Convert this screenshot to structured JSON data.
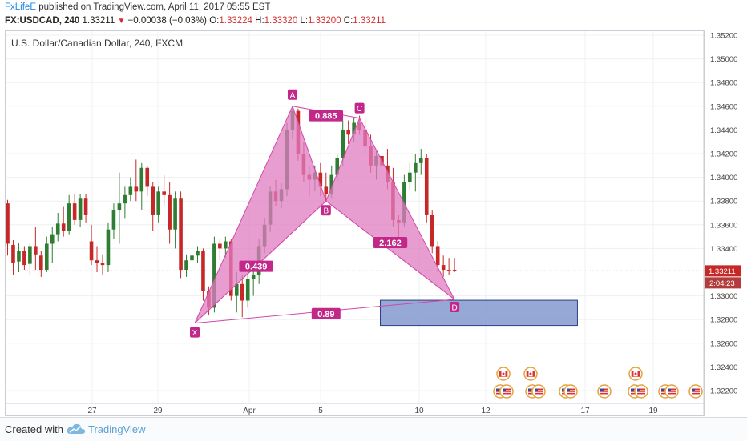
{
  "header": {
    "publisher": "FxLifeE",
    "published_text": "published on TradingView.com, April 11, 2017 05:55 EST"
  },
  "quote": {
    "symbol": "FX:USDCAD, 240",
    "last": "1.33211",
    "change": "−0.00038 (−0.03%)",
    "o_label": "O:",
    "o": "1.33224",
    "h_label": "H:",
    "h": "1.33320",
    "l_label": "L:",
    "l": "1.33200",
    "c_label": "C:",
    "c": "1.33211"
  },
  "chart_title": "U.S. Dollar/Canadian Dollar, 240, FXCM",
  "footer": {
    "created_with": "Created with",
    "brand": "TradingView"
  },
  "colors": {
    "up": "#2e7d32",
    "down": "#c62828",
    "pattern_fill": "#e07cc2",
    "pattern_line": "#d148a8",
    "label_bg": "#c2278a",
    "zone_fill": "#8299cf",
    "zone_stroke": "#2b3f8a",
    "price_line": "#e0483e"
  },
  "chart_data": {
    "type": "candlestick",
    "title": "U.S. Dollar/Canadian Dollar, 240, FXCM",
    "y_ticks": [
      "1.35200",
      "1.35000",
      "1.34800",
      "1.34600",
      "1.34400",
      "1.34200",
      "1.34000",
      "1.33800",
      "1.33600",
      "1.33400",
      "1.33000",
      "1.32800",
      "1.32600",
      "1.32400",
      "1.32200"
    ],
    "x_ticks": [
      "27",
      "29",
      "Apr",
      "5",
      "10",
      "12",
      "17",
      "19"
    ],
    "ylim": [
      1.3212,
      1.3526
    ],
    "last_price": "1.33211",
    "countdown": "2:04:23",
    "pattern": {
      "points": [
        {
          "label": "X",
          "t": 33.5,
          "price": 1.3277
        },
        {
          "label": "A",
          "t": 51.0,
          "price": 1.346
        },
        {
          "label": "B",
          "t": 57.0,
          "price": 1.338
        },
        {
          "label": "C",
          "t": 63.0,
          "price": 1.345
        },
        {
          "label": "D",
          "t": 80.0,
          "price": 1.3297
        }
      ],
      "ratios": [
        {
          "text": "0.885",
          "t": 57.0,
          "price": 1.3452
        },
        {
          "text": "0.439",
          "t": 44.5,
          "price": 1.3325
        },
        {
          "text": "2.162",
          "t": 68.5,
          "price": 1.3345
        },
        {
          "text": "0.89",
          "t": 57.0,
          "price": 1.3285
        }
      ]
    },
    "zone": {
      "t_start": 66.0,
      "t_end": 102.0,
      "price_top": 1.32963,
      "price_bottom": 1.3275
    },
    "candles": [
      {
        "t": 0,
        "o": 1.3378,
        "h": 1.3381,
        "l": 1.3334,
        "c": 1.3344
      },
      {
        "t": 1,
        "o": 1.3343,
        "h": 1.3347,
        "l": 1.3318,
        "c": 1.3328
      },
      {
        "t": 2,
        "o": 1.3329,
        "h": 1.3345,
        "l": 1.332,
        "c": 1.3338
      },
      {
        "t": 3,
        "o": 1.3338,
        "h": 1.3342,
        "l": 1.3322,
        "c": 1.3326
      },
      {
        "t": 4,
        "o": 1.3327,
        "h": 1.3345,
        "l": 1.3318,
        "c": 1.3342
      },
      {
        "t": 5,
        "o": 1.3342,
        "h": 1.3358,
        "l": 1.3322,
        "c": 1.3335
      },
      {
        "t": 6,
        "o": 1.3334,
        "h": 1.3338,
        "l": 1.3316,
        "c": 1.3322
      },
      {
        "t": 7,
        "o": 1.3322,
        "h": 1.335,
        "l": 1.332,
        "c": 1.3344
      },
      {
        "t": 8,
        "o": 1.3344,
        "h": 1.3358,
        "l": 1.3328,
        "c": 1.3352
      },
      {
        "t": 9,
        "o": 1.3352,
        "h": 1.337,
        "l": 1.3346,
        "c": 1.3361
      },
      {
        "t": 10,
        "o": 1.3361,
        "h": 1.3375,
        "l": 1.335,
        "c": 1.3355
      },
      {
        "t": 11,
        "o": 1.3355,
        "h": 1.3385,
        "l": 1.3352,
        "c": 1.3378
      },
      {
        "t": 12,
        "o": 1.3378,
        "h": 1.3386,
        "l": 1.336,
        "c": 1.3364
      },
      {
        "t": 13,
        "o": 1.3364,
        "h": 1.3386,
        "l": 1.3358,
        "c": 1.3382
      },
      {
        "t": 14,
        "o": 1.3382,
        "h": 1.3386,
        "l": 1.3362,
        "c": 1.3368
      },
      {
        "t": 15,
        "o": 1.3346,
        "h": 1.336,
        "l": 1.3326,
        "c": 1.333
      },
      {
        "t": 16,
        "o": 1.333,
        "h": 1.3342,
        "l": 1.332,
        "c": 1.3328
      },
      {
        "t": 17,
        "o": 1.3328,
        "h": 1.3335,
        "l": 1.3318,
        "c": 1.3326
      },
      {
        "t": 18,
        "o": 1.3326,
        "h": 1.3362,
        "l": 1.332,
        "c": 1.3356
      },
      {
        "t": 19,
        "o": 1.3356,
        "h": 1.3378,
        "l": 1.3348,
        "c": 1.3372
      },
      {
        "t": 20,
        "o": 1.3372,
        "h": 1.3404,
        "l": 1.3344,
        "c": 1.3378
      },
      {
        "t": 21,
        "o": 1.3378,
        "h": 1.3392,
        "l": 1.3365,
        "c": 1.3385
      },
      {
        "t": 22,
        "o": 1.3385,
        "h": 1.34,
        "l": 1.338,
        "c": 1.3392
      },
      {
        "t": 23,
        "o": 1.3392,
        "h": 1.3415,
        "l": 1.338,
        "c": 1.3388
      },
      {
        "t": 24,
        "o": 1.3388,
        "h": 1.3412,
        "l": 1.3372,
        "c": 1.3408
      },
      {
        "t": 25,
        "o": 1.3408,
        "h": 1.341,
        "l": 1.3384,
        "c": 1.3392
      },
      {
        "t": 26,
        "o": 1.3392,
        "h": 1.3396,
        "l": 1.3355,
        "c": 1.3368
      },
      {
        "t": 27,
        "o": 1.3368,
        "h": 1.3392,
        "l": 1.3362,
        "c": 1.3388
      },
      {
        "t": 28,
        "o": 1.3388,
        "h": 1.3402,
        "l": 1.3376,
        "c": 1.3385
      },
      {
        "t": 29,
        "o": 1.3385,
        "h": 1.3396,
        "l": 1.3344,
        "c": 1.3356
      },
      {
        "t": 30,
        "o": 1.3356,
        "h": 1.3388,
        "l": 1.334,
        "c": 1.3382
      },
      {
        "t": 31,
        "o": 1.3382,
        "h": 1.3388,
        "l": 1.3315,
        "c": 1.3322
      },
      {
        "t": 32,
        "o": 1.3322,
        "h": 1.3335,
        "l": 1.3316,
        "c": 1.333
      },
      {
        "t": 33,
        "o": 1.333,
        "h": 1.3352,
        "l": 1.3322,
        "c": 1.3334
      },
      {
        "t": 34,
        "o": 1.3334,
        "h": 1.3342,
        "l": 1.3328,
        "c": 1.3338
      },
      {
        "t": 35,
        "o": 1.3338,
        "h": 1.334,
        "l": 1.3296,
        "c": 1.3304
      },
      {
        "t": 36,
        "o": 1.3304,
        "h": 1.3308,
        "l": 1.3284,
        "c": 1.329
      },
      {
        "t": 37,
        "o": 1.329,
        "h": 1.335,
        "l": 1.3286,
        "c": 1.3344
      },
      {
        "t": 38,
        "o": 1.3344,
        "h": 1.3348,
        "l": 1.333,
        "c": 1.334
      },
      {
        "t": 39,
        "o": 1.334,
        "h": 1.335,
        "l": 1.3332,
        "c": 1.3346
      },
      {
        "t": 40,
        "o": 1.3346,
        "h": 1.3348,
        "l": 1.3296,
        "c": 1.33
      },
      {
        "t": 41,
        "o": 1.33,
        "h": 1.332,
        "l": 1.3286,
        "c": 1.331
      },
      {
        "t": 42,
        "o": 1.331,
        "h": 1.3318,
        "l": 1.3282,
        "c": 1.3296
      },
      {
        "t": 43,
        "o": 1.3296,
        "h": 1.3318,
        "l": 1.329,
        "c": 1.3314
      },
      {
        "t": 44,
        "o": 1.3314,
        "h": 1.3326,
        "l": 1.33,
        "c": 1.3318
      },
      {
        "t": 45,
        "o": 1.3318,
        "h": 1.3348,
        "l": 1.331,
        "c": 1.3342
      },
      {
        "t": 46,
        "o": 1.3342,
        "h": 1.3366,
        "l": 1.3336,
        "c": 1.336
      },
      {
        "t": 47,
        "o": 1.336,
        "h": 1.3392,
        "l": 1.3354,
        "c": 1.3388
      },
      {
        "t": 48,
        "o": 1.3388,
        "h": 1.3398,
        "l": 1.3376,
        "c": 1.338
      },
      {
        "t": 49,
        "o": 1.338,
        "h": 1.3395,
        "l": 1.3374,
        "c": 1.339
      },
      {
        "t": 50,
        "o": 1.339,
        "h": 1.3446,
        "l": 1.3384,
        "c": 1.344
      },
      {
        "t": 51,
        "o": 1.344,
        "h": 1.346,
        "l": 1.3432,
        "c": 1.3456
      },
      {
        "t": 52,
        "o": 1.3456,
        "h": 1.3458,
        "l": 1.3414,
        "c": 1.342
      },
      {
        "t": 53,
        "o": 1.342,
        "h": 1.343,
        "l": 1.3396,
        "c": 1.3402
      },
      {
        "t": 54,
        "o": 1.3402,
        "h": 1.341,
        "l": 1.3384,
        "c": 1.3398
      },
      {
        "t": 55,
        "o": 1.3398,
        "h": 1.341,
        "l": 1.3388,
        "c": 1.3404
      },
      {
        "t": 56,
        "o": 1.3404,
        "h": 1.3412,
        "l": 1.3384,
        "c": 1.3392
      },
      {
        "t": 57,
        "o": 1.3392,
        "h": 1.3404,
        "l": 1.338,
        "c": 1.3386
      },
      {
        "t": 58,
        "o": 1.3386,
        "h": 1.341,
        "l": 1.3382,
        "c": 1.3402
      },
      {
        "t": 59,
        "o": 1.3402,
        "h": 1.342,
        "l": 1.3396,
        "c": 1.3416
      },
      {
        "t": 60,
        "o": 1.3416,
        "h": 1.3448,
        "l": 1.341,
        "c": 1.344
      },
      {
        "t": 61,
        "o": 1.344,
        "h": 1.3448,
        "l": 1.3428,
        "c": 1.3436
      },
      {
        "t": 62,
        "o": 1.3436,
        "h": 1.345,
        "l": 1.343,
        "c": 1.3446
      },
      {
        "t": 63,
        "o": 1.3446,
        "h": 1.3452,
        "l": 1.3436,
        "c": 1.344
      },
      {
        "t": 64,
        "o": 1.344,
        "h": 1.345,
        "l": 1.342,
        "c": 1.3426
      },
      {
        "t": 65,
        "o": 1.3426,
        "h": 1.3436,
        "l": 1.3404,
        "c": 1.341
      },
      {
        "t": 66,
        "o": 1.341,
        "h": 1.3422,
        "l": 1.3398,
        "c": 1.3418
      },
      {
        "t": 67,
        "o": 1.3418,
        "h": 1.3426,
        "l": 1.3404,
        "c": 1.341
      },
      {
        "t": 68,
        "o": 1.341,
        "h": 1.3424,
        "l": 1.339,
        "c": 1.3396
      },
      {
        "t": 69,
        "o": 1.3396,
        "h": 1.3408,
        "l": 1.3358,
        "c": 1.3364
      },
      {
        "t": 70,
        "o": 1.3364,
        "h": 1.3368,
        "l": 1.334,
        "c": 1.3362
      },
      {
        "t": 71,
        "o": 1.3362,
        "h": 1.3402,
        "l": 1.3358,
        "c": 1.3396
      },
      {
        "t": 72,
        "o": 1.3396,
        "h": 1.3412,
        "l": 1.339,
        "c": 1.3404
      },
      {
        "t": 73,
        "o": 1.3404,
        "h": 1.342,
        "l": 1.3388,
        "c": 1.3412
      },
      {
        "t": 74,
        "o": 1.3412,
        "h": 1.3424,
        "l": 1.3402,
        "c": 1.3416
      },
      {
        "t": 75,
        "o": 1.3416,
        "h": 1.342,
        "l": 1.3362,
        "c": 1.3368
      },
      {
        "t": 76,
        "o": 1.3368,
        "h": 1.3372,
        "l": 1.3336,
        "c": 1.3342
      },
      {
        "t": 77,
        "o": 1.3342,
        "h": 1.3346,
        "l": 1.332,
        "c": 1.3326
      },
      {
        "t": 78,
        "o": 1.3326,
        "h": 1.3334,
        "l": 1.3316,
        "c": 1.3322
      },
      {
        "t": 79,
        "o": 1.3322,
        "h": 1.3332,
        "l": 1.3318,
        "c": 1.3321
      },
      {
        "t": 80,
        "o": 1.3322,
        "h": 1.3332,
        "l": 1.332,
        "c": 1.3321
      }
    ]
  }
}
